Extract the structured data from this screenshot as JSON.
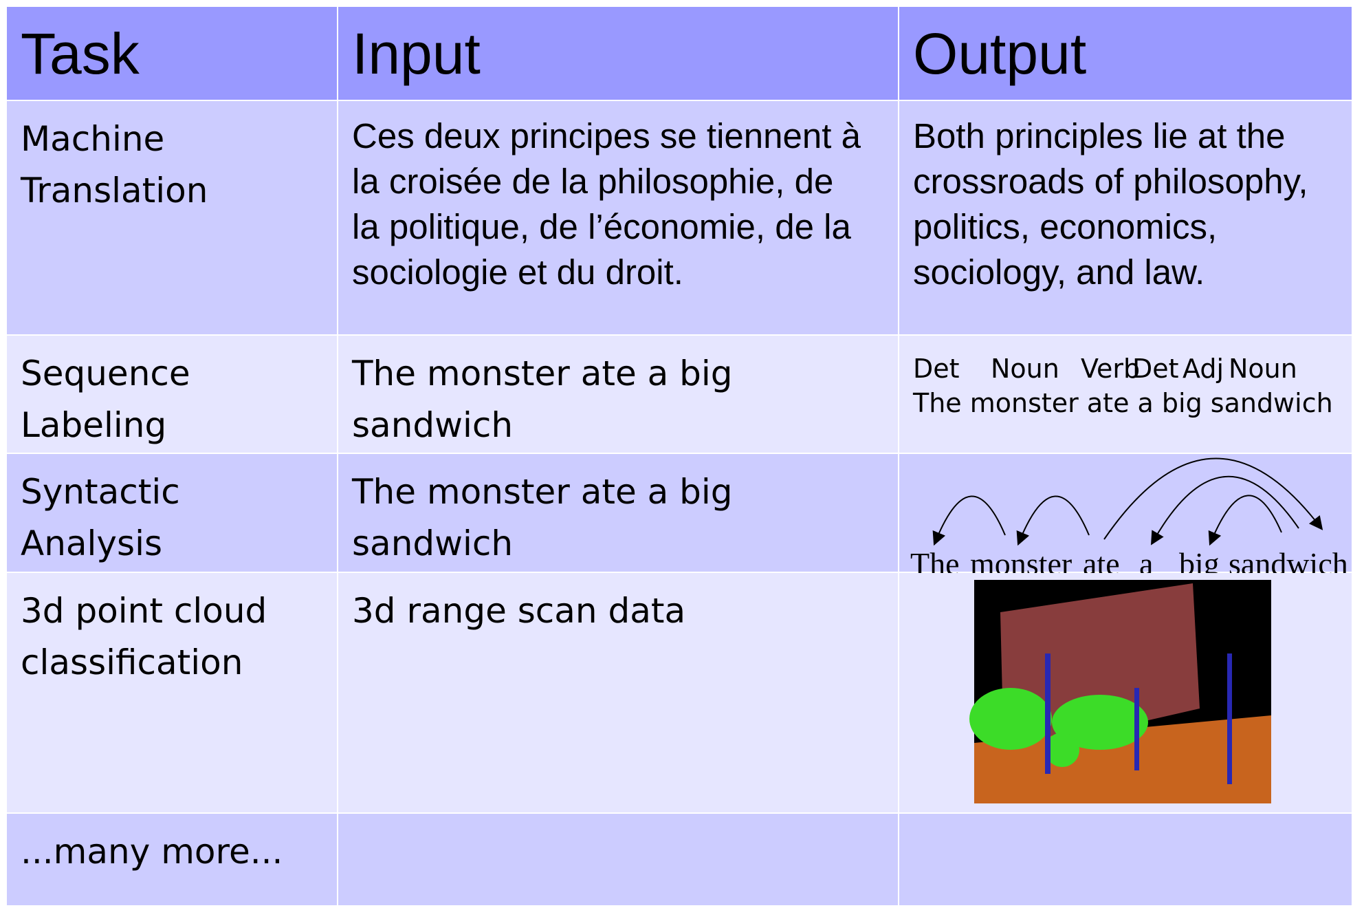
{
  "header": [
    "Task",
    "Input",
    "Output"
  ],
  "rows": [
    {
      "task": [
        "Machine",
        "Translation"
      ],
      "input": [
        "Ces deux principes se tiennent à",
        "la croisée de la philosophie, de",
        "la politique, de l’économie, de la",
        "sociologie et du droit."
      ],
      "output": [
        "Both principles lie at the",
        "crossroads of philosophy,",
        "politics, economics,",
        "sociology, and law."
      ]
    },
    {
      "task": [
        "Sequence",
        "Labeling"
      ],
      "input": [
        "The monster ate a big",
        "sandwich"
      ],
      "output": {
        "tags": [
          "Det",
          "Noun",
          "Verb",
          "Det",
          "Adj",
          "Noun"
        ],
        "sentence": "The monster ate a big sandwich"
      }
    },
    {
      "task": [
        "Syntactic",
        "Analysis"
      ],
      "input": [
        "The monster ate a big",
        "sandwich"
      ],
      "output": {
        "words": [
          "The",
          "monster",
          "ate",
          "a",
          "big",
          "sandwich"
        ]
      }
    },
    {
      "task": [
        "3d point cloud",
        "classification"
      ],
      "input": [
        "3d range scan data"
      ]
    },
    {
      "task": [
        "...many more..."
      ]
    }
  ]
}
